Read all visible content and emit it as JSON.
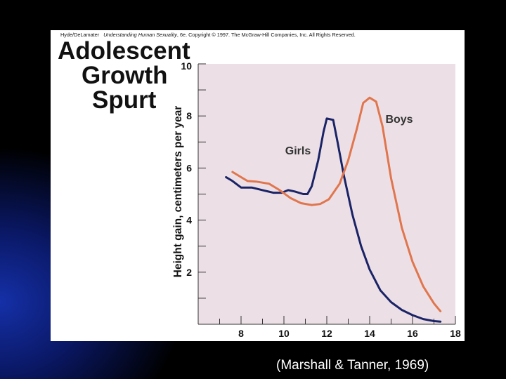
{
  "figure": {
    "copyright_author": "Hyde/DeLamater",
    "copyright_book": "Understanding Human Sexuality",
    "copyright_rest": ", 6e. Copyright © 1997. The McGraw-Hill Companies, Inc. All Rights Reserved.",
    "title_line1": "Adolescent",
    "title_line2": "Growth",
    "title_line3": "Spurt"
  },
  "caption": "(Marshall & Tanner, 1969)",
  "colors": {
    "plot_background": "#ece0e6",
    "girls": "#1a2366",
    "boys": "#e0764e",
    "axis": "#333333"
  },
  "chart_data": {
    "type": "line",
    "title": "Adolescent Growth Spurt",
    "xlabel": "",
    "ylabel": "Height gain, centimeters per year",
    "xlim": [
      6,
      18
    ],
    "ylim": [
      0,
      10
    ],
    "x_ticks": [
      "8",
      "10",
      "12",
      "14",
      "16",
      "18"
    ],
    "y_ticks": [
      "2",
      "4",
      "6",
      "8",
      "10"
    ],
    "legend": "annotations",
    "series": [
      {
        "name": "Girls",
        "points": [
          [
            7.3,
            5.65
          ],
          [
            7.6,
            5.5
          ],
          [
            8.0,
            5.25
          ],
          [
            8.5,
            5.25
          ],
          [
            9.0,
            5.15
          ],
          [
            9.5,
            5.05
          ],
          [
            9.9,
            5.05
          ],
          [
            10.2,
            5.15
          ],
          [
            10.5,
            5.1
          ],
          [
            10.9,
            5.0
          ],
          [
            11.1,
            5.0
          ],
          [
            11.3,
            5.3
          ],
          [
            11.6,
            6.3
          ],
          [
            11.85,
            7.4
          ],
          [
            12.0,
            7.9
          ],
          [
            12.3,
            7.85
          ],
          [
            12.5,
            7.0
          ],
          [
            12.8,
            5.7
          ],
          [
            13.2,
            4.2
          ],
          [
            13.6,
            3.0
          ],
          [
            14.0,
            2.1
          ],
          [
            14.5,
            1.3
          ],
          [
            15.0,
            0.85
          ],
          [
            15.5,
            0.55
          ],
          [
            16.0,
            0.35
          ],
          [
            16.5,
            0.2
          ],
          [
            17.0,
            0.12
          ],
          [
            17.3,
            0.1
          ]
        ]
      },
      {
        "name": "Boys",
        "points": [
          [
            7.6,
            5.85
          ],
          [
            8.0,
            5.65
          ],
          [
            8.3,
            5.5
          ],
          [
            8.7,
            5.48
          ],
          [
            9.3,
            5.4
          ],
          [
            9.8,
            5.15
          ],
          [
            10.3,
            4.85
          ],
          [
            10.8,
            4.65
          ],
          [
            11.3,
            4.58
          ],
          [
            11.7,
            4.62
          ],
          [
            12.1,
            4.8
          ],
          [
            12.6,
            5.4
          ],
          [
            13.0,
            6.3
          ],
          [
            13.4,
            7.5
          ],
          [
            13.7,
            8.5
          ],
          [
            14.0,
            8.7
          ],
          [
            14.3,
            8.55
          ],
          [
            14.6,
            7.6
          ],
          [
            15.0,
            5.6
          ],
          [
            15.5,
            3.7
          ],
          [
            16.0,
            2.4
          ],
          [
            16.5,
            1.45
          ],
          [
            17.0,
            0.8
          ],
          [
            17.3,
            0.5
          ]
        ]
      }
    ]
  }
}
